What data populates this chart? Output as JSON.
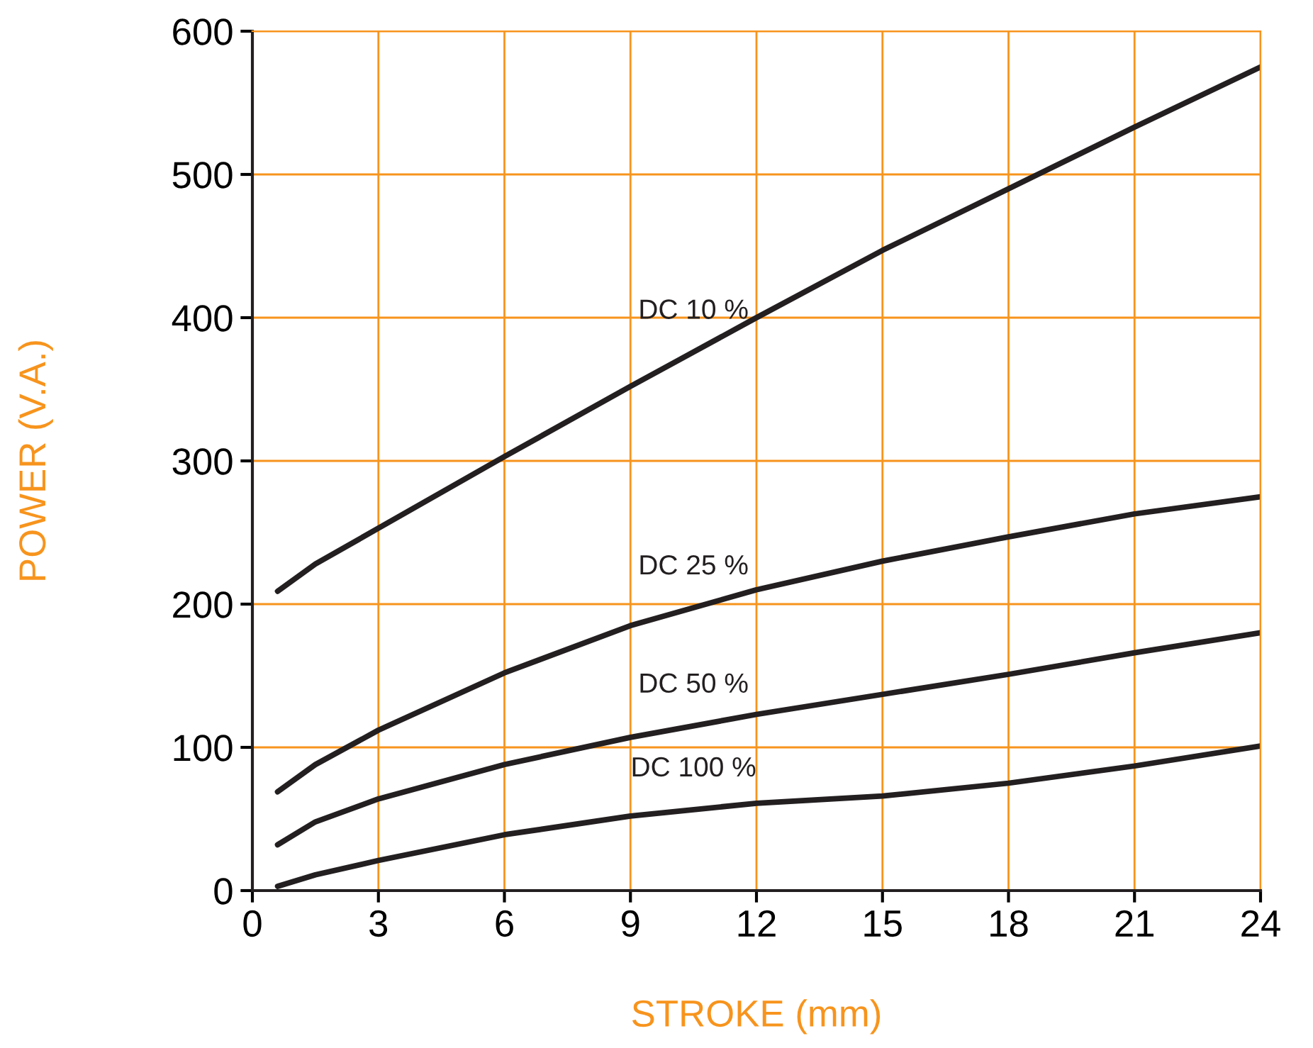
{
  "chart_data": {
    "type": "line",
    "xlabel": "STROKE (mm)",
    "ylabel": "POWER (V.A.)",
    "xlim": [
      0,
      24
    ],
    "xticks": [
      0,
      3,
      6,
      9,
      12,
      15,
      18,
      21,
      24
    ],
    "ylim": [
      0,
      600
    ],
    "yticks": [
      0,
      100,
      200,
      300,
      400,
      500,
      600
    ],
    "grid": true,
    "legend": false,
    "marker": "none",
    "line_style": "solid",
    "series": [
      {
        "name": "DC 10 %",
        "color": "#231f20",
        "x": [
          0.6,
          1.5,
          3,
          6,
          9,
          12,
          15,
          18,
          21,
          24
        ],
        "values": [
          209,
          228,
          253,
          303,
          352,
          400,
          447,
          490,
          533,
          575
        ]
      },
      {
        "name": "DC 25 %",
        "color": "#231f20",
        "x": [
          0.6,
          1.5,
          3,
          6,
          9,
          12,
          15,
          18,
          21,
          24
        ],
        "values": [
          69,
          88,
          112,
          152,
          185,
          210,
          230,
          247,
          263,
          275
        ]
      },
      {
        "name": "DC 50 %",
        "color": "#231f20",
        "x": [
          0.6,
          1.5,
          3,
          6,
          9,
          12,
          15,
          18,
          21,
          24
        ],
        "values": [
          32,
          48,
          64,
          88,
          107,
          123,
          137,
          151,
          166,
          180
        ]
      },
      {
        "name": "DC 100 %",
        "color": "#231f20",
        "x": [
          0.6,
          1.5,
          3,
          6,
          9,
          12,
          15,
          18,
          21,
          24
        ],
        "values": [
          3,
          11,
          21,
          39,
          52,
          61,
          66,
          75,
          87,
          101
        ]
      }
    ]
  }
}
